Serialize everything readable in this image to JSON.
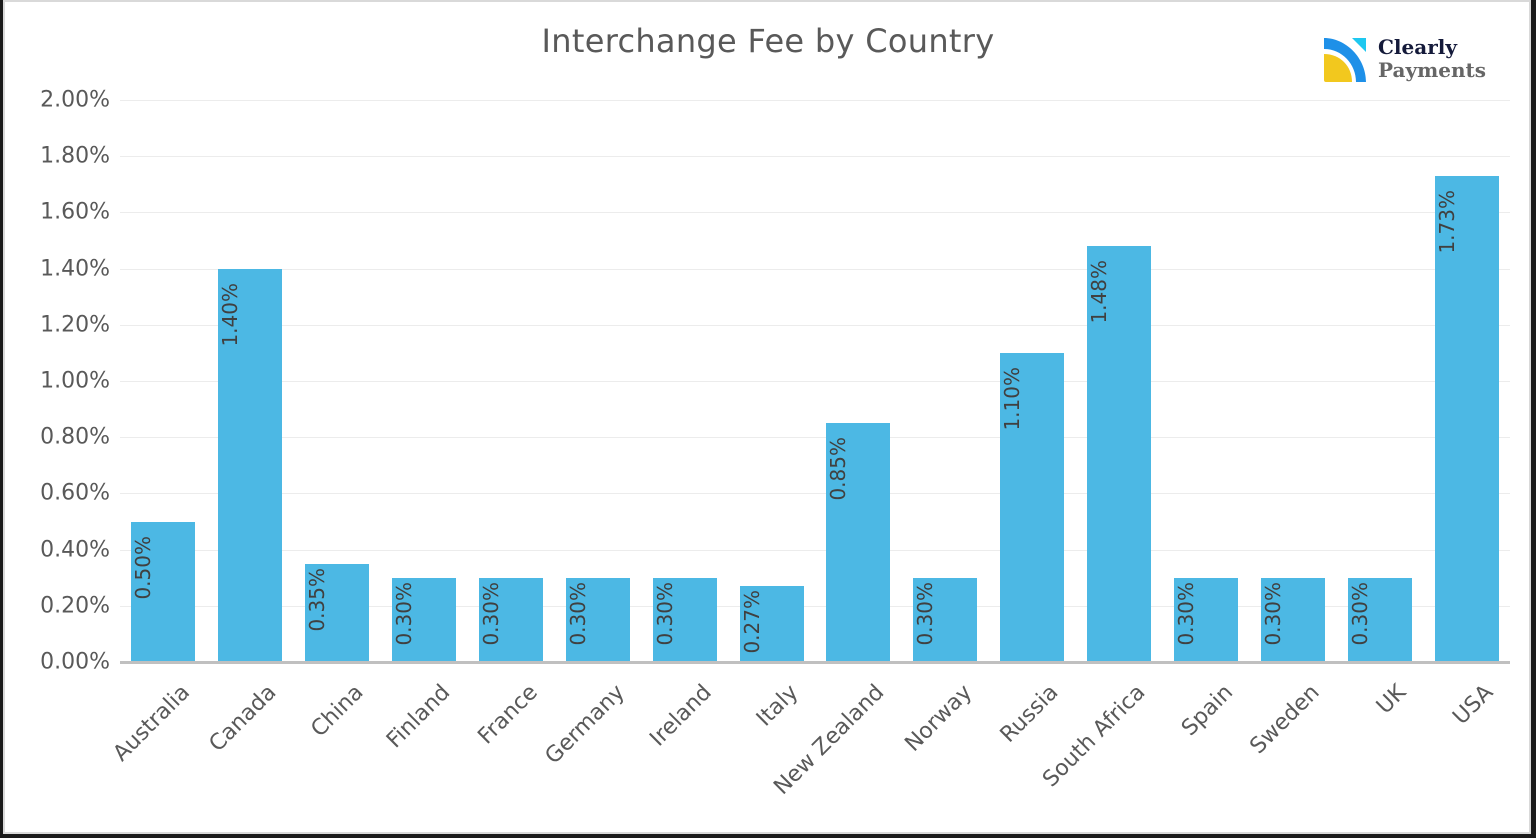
{
  "chart_data": {
    "type": "bar",
    "title": "Interchange Fee by Country",
    "xlabel": "",
    "ylabel": "",
    "ylim": [
      0,
      2.0
    ],
    "yticks": [
      "0.00%",
      "0.20%",
      "0.40%",
      "0.60%",
      "0.80%",
      "1.00%",
      "1.20%",
      "1.40%",
      "1.60%",
      "1.80%",
      "2.00%"
    ],
    "grid": true,
    "legend": "none",
    "bar_color": "#4cb8e4",
    "categories": [
      "Australia",
      "Canada",
      "China",
      "Finland",
      "France",
      "Germany",
      "Ireland",
      "Italy",
      "New Zealand",
      "Norway",
      "Russia",
      "South Africa",
      "Spain",
      "Sweden",
      "UK",
      "USA"
    ],
    "values": [
      0.5,
      1.4,
      0.35,
      0.3,
      0.3,
      0.3,
      0.3,
      0.27,
      0.85,
      0.3,
      1.1,
      1.48,
      0.3,
      0.3,
      0.3,
      1.73
    ],
    "data_labels": [
      "0.50%",
      "1.40%",
      "0.35%",
      "0.30%",
      "0.30%",
      "0.30%",
      "0.30%",
      "0.27%",
      "0.85%",
      "0.30%",
      "1.10%",
      "1.48%",
      "0.30%",
      "0.30%",
      "0.30%",
      "1.73%"
    ]
  },
  "logo": {
    "line1": "Clearly",
    "line2": "Payments",
    "colors": {
      "blue": "#1e90e8",
      "cyan": "#1ec8f0",
      "yellow": "#f2c81e",
      "navy": "#141a3a"
    }
  }
}
